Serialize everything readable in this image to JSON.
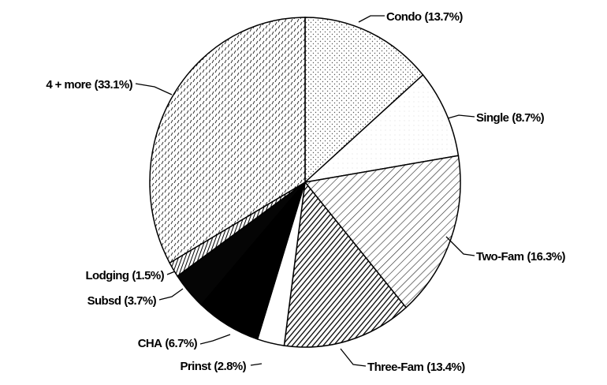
{
  "chart_data": {
    "type": "pie",
    "categories": [
      "Condo",
      "Single",
      "Two-Fam",
      "Three-Fam",
      "Prinst",
      "CHA",
      "Subsd",
      "Lodging",
      "4 + more"
    ],
    "values": [
      13.7,
      8.7,
      16.3,
      13.4,
      2.8,
      6.7,
      3.7,
      1.5,
      33.1
    ],
    "value_labels": [
      "(13.7%)",
      "(8.7%)",
      "(16.3%)",
      "(13.4%)",
      "(2.8%)",
      "(6.7%)",
      "(3.7%)",
      "(1.5%)",
      "(33.1%)"
    ]
  }
}
